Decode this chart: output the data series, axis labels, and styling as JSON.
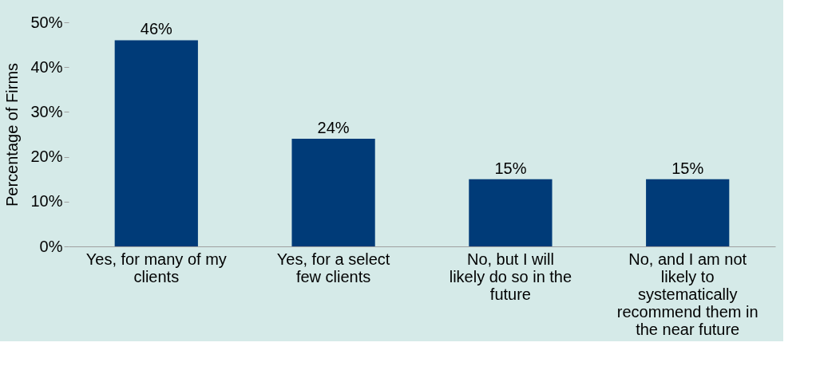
{
  "chart_data": {
    "type": "bar",
    "ylabel": "Percentage of Firms",
    "categories": [
      "Yes, for many of my clients",
      "Yes, for a select few clients",
      "No, but I will likely do so in the future",
      "No, and I am not likely to systematically recommend them in the near future"
    ],
    "values": [
      46,
      24,
      15,
      15
    ],
    "color": "#003b78",
    "value_labels": [
      "46%",
      "24%",
      "15%",
      "15%"
    ],
    "ylim": [
      0,
      50
    ],
    "yticks": [
      {
        "value": 0,
        "label": "0%"
      },
      {
        "value": 10,
        "label": "10%"
      },
      {
        "value": 20,
        "label": "20%"
      },
      {
        "value": 30,
        "label": "30%"
      },
      {
        "value": 40,
        "label": "40%"
      },
      {
        "value": 50,
        "label": "50%"
      }
    ],
    "grid": false
  }
}
